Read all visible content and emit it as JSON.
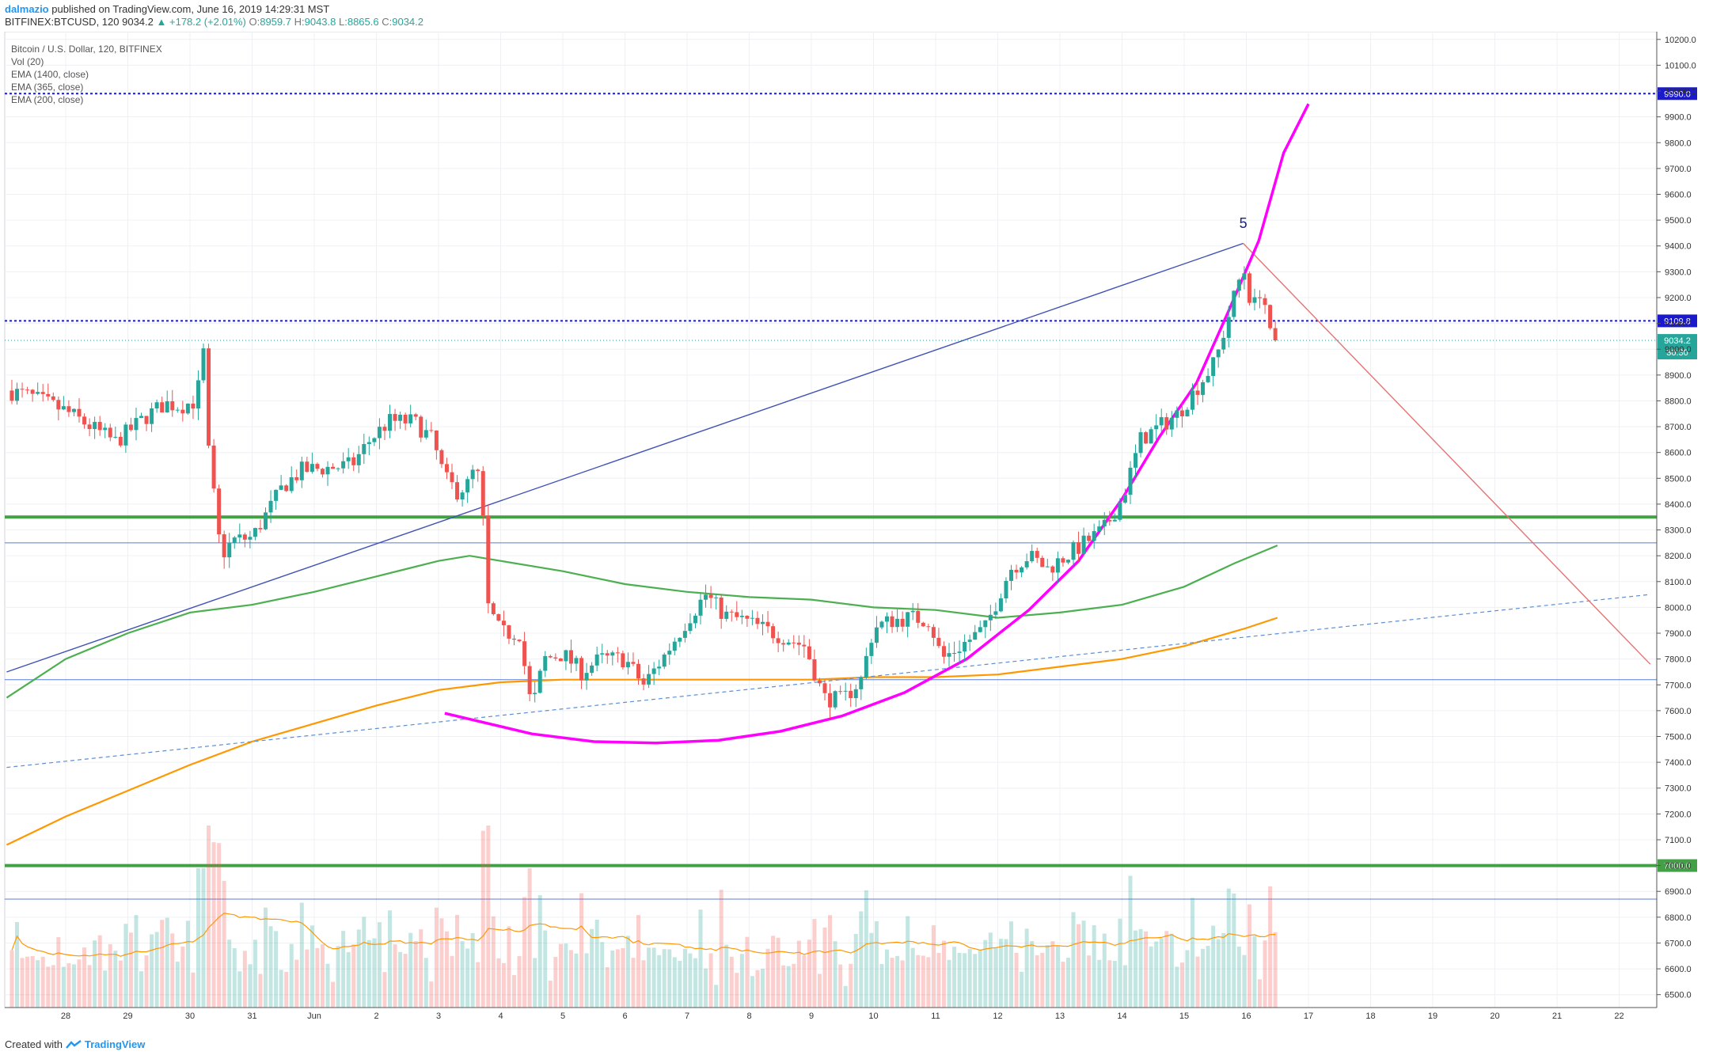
{
  "header": {
    "author": "dalmazio",
    "published_text": "published on TradingView.com, June 16, 2019 14:29:31 MST"
  },
  "symbol_bar": {
    "symbol": "BITFINEX:BTCUSD, 120",
    "price": "9034.2",
    "change": "+178.2 (+2.01%)",
    "o_label": "O:",
    "o_value": "8959.7",
    "h_label": "H:",
    "h_value": "9043.8",
    "l_label": "L:",
    "l_value": "8865.6",
    "c_label": "C:",
    "c_value": "9034.2"
  },
  "indicators": [
    "Bitcoin / U.S. Dollar, 120, BITFINEX",
    "Vol (20)",
    "EMA (1400, close)",
    "EMA (365, close)",
    "EMA (200, close)"
  ],
  "footer": {
    "created_with": "Created with",
    "brand": "TradingView"
  },
  "colors": {
    "up": "#26a69a",
    "down": "#ef5350",
    "ema200": "#4caf50",
    "ema365": "#ff9800",
    "parabola": "#ff00ff",
    "trend": "#3f51b5",
    "downtrend": "#e57373",
    "level_green": "#43a047",
    "level_blue": "#1a1acc"
  },
  "chart_data": {
    "type": "candlestick",
    "title": "Bitcoin / U.S. Dollar, 120, BITFINEX",
    "y_axis": {
      "range": [
        6450,
        10230
      ],
      "ticks": [
        "6500.0",
        "6600.0",
        "6700.0",
        "6800.0",
        "6900.0",
        "7000.0",
        "7100.0",
        "7200.0",
        "7300.0",
        "7400.0",
        "7500.0",
        "7600.0",
        "7700.0",
        "7800.0",
        "7900.0",
        "8000.0",
        "8100.0",
        "8200.0",
        "8300.0",
        "8400.0",
        "8500.0",
        "8600.0",
        "8700.0",
        "8800.0",
        "8900.0",
        "9000.0",
        "9100.0",
        "9200.0",
        "9300.0",
        "9400.0",
        "9500.0",
        "9600.0",
        "9700.0",
        "9800.0",
        "9900.0",
        "10000.0",
        "10100.0",
        "10200.0"
      ]
    },
    "x_axis": {
      "ticks": [
        {
          "label": "28",
          "day": 0
        },
        {
          "label": "29",
          "day": 1
        },
        {
          "label": "30",
          "day": 2
        },
        {
          "label": "31",
          "day": 3
        },
        {
          "label": "Jun",
          "day": 4
        },
        {
          "label": "2",
          "day": 5
        },
        {
          "label": "3",
          "day": 6
        },
        {
          "label": "4",
          "day": 7
        },
        {
          "label": "5",
          "day": 8
        },
        {
          "label": "6",
          "day": 9
        },
        {
          "label": "7",
          "day": 10
        },
        {
          "label": "8",
          "day": 11
        },
        {
          "label": "9",
          "day": 12
        },
        {
          "label": "10",
          "day": 13
        },
        {
          "label": "11",
          "day": 14
        },
        {
          "label": "12",
          "day": 15
        },
        {
          "label": "13",
          "day": 16
        },
        {
          "label": "14",
          "day": 17
        },
        {
          "label": "15",
          "day": 18
        },
        {
          "label": "16",
          "day": 19
        },
        {
          "label": "17",
          "day": 20
        },
        {
          "label": "18",
          "day": 21
        },
        {
          "label": "19",
          "day": 22
        },
        {
          "label": "20",
          "day": 23
        },
        {
          "label": "21",
          "day": 24
        },
        {
          "label": "22",
          "day": 25
        }
      ]
    },
    "price_path": [
      [
        -0.95,
        8840
      ],
      [
        -0.6,
        8820
      ],
      [
        -0.3,
        8790
      ],
      [
        0.0,
        8760
      ],
      [
        0.4,
        8700
      ],
      [
        0.8,
        8640
      ],
      [
        1.0,
        8680
      ],
      [
        1.3,
        8740
      ],
      [
        1.6,
        8790
      ],
      [
        1.85,
        8780
      ],
      [
        2.1,
        8800
      ],
      [
        2.22,
        8990
      ],
      [
        2.3,
        8600
      ],
      [
        2.5,
        8200
      ],
      [
        2.7,
        8260
      ],
      [
        3.0,
        8270
      ],
      [
        3.2,
        8350
      ],
      [
        3.5,
        8470
      ],
      [
        3.8,
        8530
      ],
      [
        4.2,
        8540
      ],
      [
        4.6,
        8550
      ],
      [
        4.9,
        8650
      ],
      [
        5.2,
        8720
      ],
      [
        5.6,
        8720
      ],
      [
        5.9,
        8650
      ],
      [
        6.1,
        8500
      ],
      [
        6.3,
        8450
      ],
      [
        6.5,
        8480
      ],
      [
        6.6,
        8560
      ],
      [
        6.7,
        8400
      ],
      [
        6.8,
        8000
      ],
      [
        7.0,
        7900
      ],
      [
        7.3,
        7900
      ],
      [
        7.5,
        7600
      ],
      [
        7.7,
        7800
      ],
      [
        8.0,
        7820
      ],
      [
        8.3,
        7750
      ],
      [
        8.6,
        7800
      ],
      [
        9.0,
        7800
      ],
      [
        9.3,
        7700
      ],
      [
        9.6,
        7800
      ],
      [
        10.0,
        7950
      ],
      [
        10.3,
        8050
      ],
      [
        10.6,
        7970
      ],
      [
        10.9,
        7950
      ],
      [
        11.2,
        7920
      ],
      [
        11.6,
        7880
      ],
      [
        11.9,
        7850
      ],
      [
        12.2,
        7650
      ],
      [
        12.5,
        7640
      ],
      [
        12.8,
        7720
      ],
      [
        13.0,
        7920
      ],
      [
        13.3,
        7950
      ],
      [
        13.6,
        7960
      ],
      [
        13.9,
        7950
      ],
      [
        14.1,
        7800
      ],
      [
        14.4,
        7850
      ],
      [
        14.8,
        7920
      ],
      [
        15.2,
        8150
      ],
      [
        15.5,
        8200
      ],
      [
        15.8,
        8150
      ],
      [
        16.1,
        8200
      ],
      [
        16.4,
        8250
      ],
      [
        16.7,
        8300
      ],
      [
        17.0,
        8420
      ],
      [
        17.3,
        8650
      ],
      [
        17.6,
        8700
      ],
      [
        17.9,
        8750
      ],
      [
        18.2,
        8850
      ],
      [
        18.5,
        8950
      ],
      [
        18.8,
        9200
      ],
      [
        18.95,
        9320
      ],
      [
        19.1,
        9150
      ],
      [
        19.25,
        9250
      ],
      [
        19.35,
        9100
      ],
      [
        19.45,
        8950
      ],
      [
        19.5,
        9034
      ]
    ],
    "last_price": 9034.2,
    "last_price_timer": "30:30",
    "ema200": [
      [
        -0.95,
        7650
      ],
      [
        0.0,
        7800
      ],
      [
        1.0,
        7900
      ],
      [
        2.0,
        7980
      ],
      [
        3.0,
        8010
      ],
      [
        4.0,
        8060
      ],
      [
        5.0,
        8120
      ],
      [
        6.0,
        8180
      ],
      [
        6.5,
        8200
      ],
      [
        7.0,
        8180
      ],
      [
        8.0,
        8140
      ],
      [
        9.0,
        8090
      ],
      [
        10.0,
        8060
      ],
      [
        11.0,
        8040
      ],
      [
        12.0,
        8030
      ],
      [
        13.0,
        8000
      ],
      [
        14.0,
        7990
      ],
      [
        15.0,
        7960
      ],
      [
        16.0,
        7980
      ],
      [
        17.0,
        8010
      ],
      [
        18.0,
        8080
      ],
      [
        18.8,
        8170
      ],
      [
        19.5,
        8240
      ]
    ],
    "ema365": [
      [
        -0.95,
        7080
      ],
      [
        0.0,
        7190
      ],
      [
        1.0,
        7290
      ],
      [
        2.0,
        7390
      ],
      [
        3.0,
        7480
      ],
      [
        4.0,
        7550
      ],
      [
        5.0,
        7620
      ],
      [
        6.0,
        7680
      ],
      [
        7.0,
        7710
      ],
      [
        8.0,
        7720
      ],
      [
        9.0,
        7720
      ],
      [
        10.0,
        7720
      ],
      [
        11.0,
        7720
      ],
      [
        12.0,
        7720
      ],
      [
        13.0,
        7730
      ],
      [
        14.0,
        7730
      ],
      [
        15.0,
        7740
      ],
      [
        16.0,
        7770
      ],
      [
        17.0,
        7800
      ],
      [
        18.0,
        7850
      ],
      [
        19.0,
        7920
      ],
      [
        19.5,
        7960
      ]
    ],
    "parabola": [
      [
        6.1,
        7590
      ],
      [
        7.5,
        7510
      ],
      [
        8.5,
        7480
      ],
      [
        9.5,
        7475
      ],
      [
        10.5,
        7485
      ],
      [
        11.5,
        7520
      ],
      [
        12.5,
        7580
      ],
      [
        13.5,
        7670
      ],
      [
        14.5,
        7800
      ],
      [
        15.5,
        7990
      ],
      [
        16.3,
        8180
      ],
      [
        17.0,
        8420
      ],
      [
        17.6,
        8660
      ],
      [
        18.2,
        8870
      ],
      [
        18.7,
        9140
      ],
      [
        19.2,
        9420
      ],
      [
        19.6,
        9760
      ],
      [
        20.0,
        9950
      ]
    ],
    "trendline_up": [
      [
        -0.95,
        7750
      ],
      [
        18.95,
        9410
      ]
    ],
    "trendline_down": [
      [
        18.95,
        9410
      ],
      [
        25.5,
        7780
      ]
    ],
    "trendline_dashed": [
      [
        -0.95,
        7380
      ],
      [
        25.5,
        8050
      ]
    ],
    "horizontal_levels": [
      {
        "price": 9990.0,
        "label": "9990.0",
        "style": "dotted",
        "color": "#1a1acc"
      },
      {
        "price": 9109.8,
        "label": "9109.8",
        "style": "dotted",
        "color": "#1a1acc"
      },
      {
        "price": 8350,
        "style": "solid",
        "color": "#43a047"
      },
      {
        "price": 8250,
        "style": "thin",
        "color": "#5c7bd9"
      },
      {
        "price": 7720,
        "style": "thin",
        "color": "#5c7bd9"
      },
      {
        "price": 7000.0,
        "label": "7000.0",
        "style": "solid",
        "color": "#43a047"
      },
      {
        "price": 6870,
        "style": "thin",
        "color": "#5c7bd9"
      }
    ],
    "annotation": {
      "text": "5",
      "day": 18.95,
      "price": 9470
    }
  }
}
